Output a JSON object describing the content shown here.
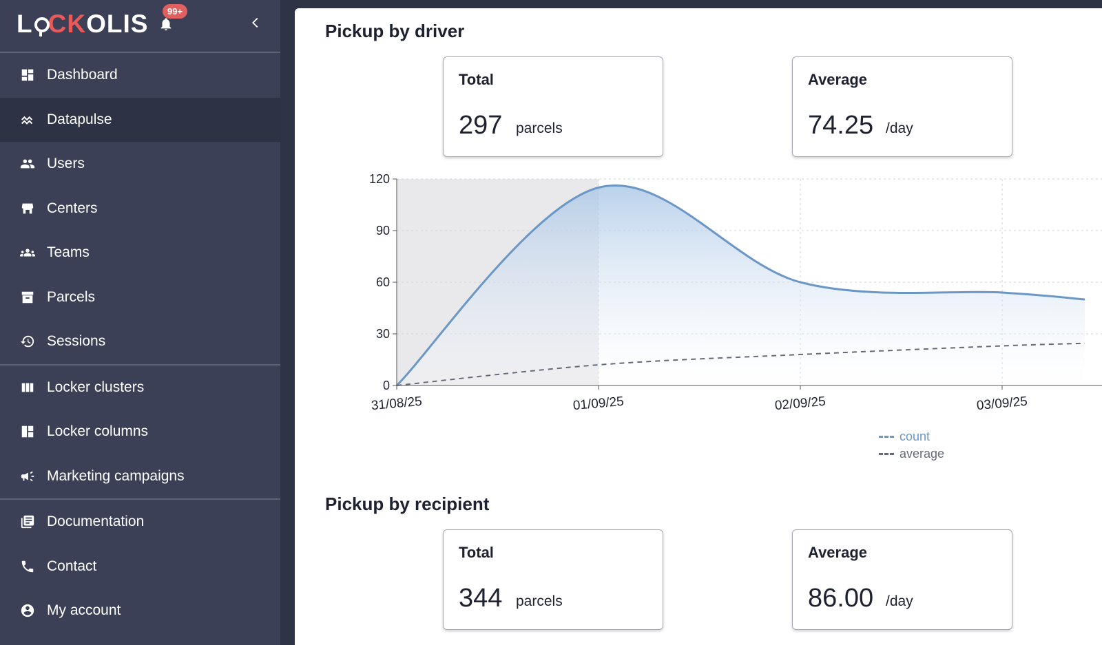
{
  "brand": {
    "logo_text_a": "L",
    "logo_text_b": "CK",
    "logo_text_c": "OLIS",
    "notifications": "99+"
  },
  "sidebar": {
    "groups": [
      [
        {
          "label": "Dashboard",
          "icon": "dashboard-icon"
        },
        {
          "label": "Datapulse",
          "icon": "pulse-icon",
          "active": true
        },
        {
          "label": "Users",
          "icon": "users-icon"
        },
        {
          "label": "Centers",
          "icon": "store-icon"
        },
        {
          "label": "Teams",
          "icon": "teams-icon"
        },
        {
          "label": "Parcels",
          "icon": "archive-icon"
        },
        {
          "label": "Sessions",
          "icon": "history-icon"
        }
      ],
      [
        {
          "label": "Locker clusters",
          "icon": "columns-icon"
        },
        {
          "label": "Locker columns",
          "icon": "locker-column-icon"
        },
        {
          "label": "Marketing campaigns",
          "icon": "megaphone-icon"
        }
      ],
      [
        {
          "label": "Documentation",
          "icon": "docs-icon"
        },
        {
          "label": "Contact",
          "icon": "phone-icon"
        },
        {
          "label": "My account",
          "icon": "account-icon"
        }
      ]
    ]
  },
  "driver": {
    "title": "Pickup by driver",
    "total": {
      "label": "Total",
      "value": "297",
      "unit": "parcels"
    },
    "average": {
      "label": "Average",
      "value": "74.25",
      "unit": "/day"
    }
  },
  "recipient": {
    "title": "Pickup by recipient",
    "total": {
      "label": "Total",
      "value": "344",
      "unit": "parcels"
    },
    "average": {
      "label": "Average",
      "value": "86.00",
      "unit": "/day"
    }
  },
  "chart_data": {
    "type": "area",
    "categories": [
      "31/08/25",
      "01/09/25",
      "02/09/25",
      "03/09/25"
    ],
    "series": [
      {
        "name": "count",
        "values": [
          0,
          115,
          60,
          54
        ],
        "color": "#6a97c6"
      },
      {
        "name": "average",
        "values": [
          0,
          12,
          18,
          23
        ],
        "color": "#666a78"
      }
    ],
    "y_ticks": [
      "0",
      "30",
      "60",
      "90",
      "120"
    ],
    "ylim": [
      0,
      120
    ],
    "grid": true,
    "legend": "bottom-right"
  }
}
